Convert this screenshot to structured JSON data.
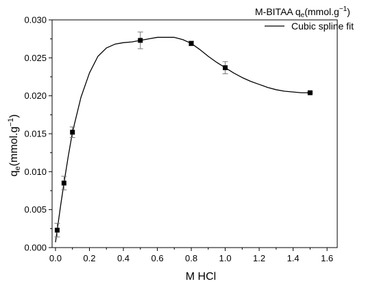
{
  "chart_data": {
    "type": "scatter",
    "title": "",
    "xlabel": "M HCl",
    "ylabel": {
      "main": "q",
      "sub": "e",
      "rest": "(mmol.g",
      "sup": "−1",
      "close": ")"
    },
    "xlim": [
      -0.02,
      1.66
    ],
    "ylim": [
      0.0,
      0.03
    ],
    "x_ticks": [
      0.0,
      0.2,
      0.4,
      0.6,
      0.8,
      1.0,
      1.2,
      1.4,
      1.6
    ],
    "x_tick_labels": [
      "0.0",
      "0.2",
      "0.4",
      "0.6",
      "0.8",
      "1.0",
      "1.2",
      "1.4",
      "1.6"
    ],
    "y_ticks": [
      0.0,
      0.005,
      0.01,
      0.015,
      0.02,
      0.025,
      0.03
    ],
    "y_tick_labels": [
      "0.000",
      "0.005",
      "0.010",
      "0.015",
      "0.020",
      "0.025",
      "0.030"
    ],
    "grid": false,
    "legend_position": "top-right",
    "series": [
      {
        "name": {
          "main": "M-BITAA q",
          "sub": "e",
          "rest": "(mmol.g",
          "sup": "−1",
          "close": ")"
        },
        "kind": "points",
        "marker": "square",
        "color": "#000000",
        "x": [
          0.01,
          0.05,
          0.1,
          0.5,
          0.8,
          1.0,
          1.5
        ],
        "y": [
          0.0023,
          0.0085,
          0.0152,
          0.0273,
          0.0269,
          0.0237,
          0.0204
        ],
        "error": [
          0.0009,
          0.0009,
          0.0007,
          0.0011,
          0.0003,
          0.0008,
          0.0001
        ]
      },
      {
        "name": "Cubic spline fit",
        "kind": "line",
        "color": "#000000",
        "x": [
          0.0,
          0.01,
          0.03,
          0.05,
          0.075,
          0.1,
          0.15,
          0.2,
          0.25,
          0.3,
          0.35,
          0.4,
          0.45,
          0.5,
          0.55,
          0.6,
          0.65,
          0.7,
          0.75,
          0.8,
          0.85,
          0.9,
          0.95,
          1.0,
          1.05,
          1.1,
          1.15,
          1.2,
          1.25,
          1.3,
          1.35,
          1.4,
          1.45,
          1.5
        ],
        "y": [
          0.0007,
          0.0023,
          0.0055,
          0.0085,
          0.012,
          0.0152,
          0.0198,
          0.023,
          0.0252,
          0.0263,
          0.0268,
          0.027,
          0.0271,
          0.0273,
          0.0275,
          0.0277,
          0.0277,
          0.0277,
          0.0274,
          0.0269,
          0.0261,
          0.0252,
          0.0244,
          0.0237,
          0.023,
          0.0224,
          0.0219,
          0.0215,
          0.0211,
          0.0208,
          0.0206,
          0.0205,
          0.0204,
          0.0204
        ]
      }
    ]
  }
}
